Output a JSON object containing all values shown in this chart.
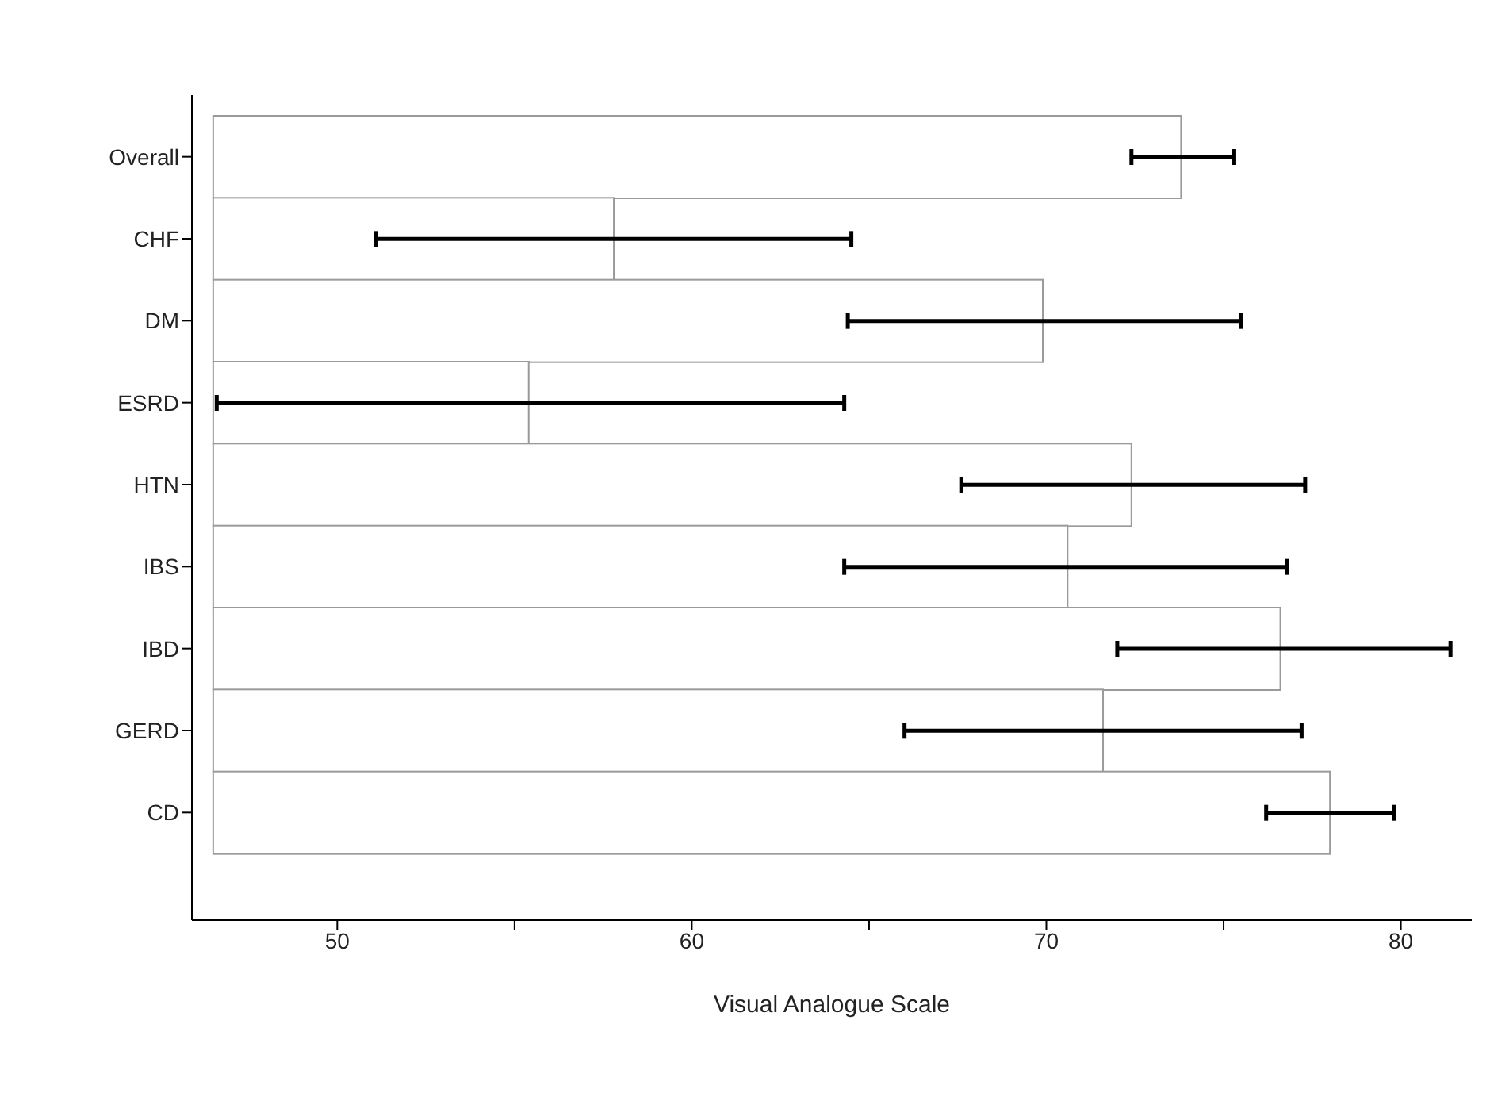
{
  "chart_data": {
    "type": "bar",
    "orientation": "horizontal",
    "xlabel": "Visual Analogue Scale",
    "categories": [
      "Overall",
      "CHF",
      "DM",
      "ESRD",
      "HTN",
      "IBS",
      "IBD",
      "GERD",
      "CD"
    ],
    "base": [
      46.5,
      46.5,
      46.5,
      46.5,
      46.5,
      46.5,
      46.5,
      46.5,
      46.5
    ],
    "values": [
      27.3,
      11.3,
      23.4,
      8.9,
      25.9,
      24.1,
      30.1,
      25.1,
      31.5
    ],
    "errors": [
      [
        72.4,
        75.3
      ],
      [
        51.1,
        64.5
      ],
      [
        64.4,
        75.5
      ],
      [
        46.6,
        64.3
      ],
      [
        67.6,
        77.3
      ],
      [
        64.3,
        76.8
      ],
      [
        72.0,
        81.4
      ],
      [
        66.0,
        77.2
      ],
      [
        76.2,
        79.8
      ]
    ],
    "color": "#ffffff",
    "xlim": [
      45.9,
      82
    ],
    "xticks": [
      50,
      {
        "value": 55,
        "label": null
      },
      60,
      {
        "value": 65,
        "label": null
      },
      70,
      {
        "value": 75,
        "label": null
      },
      80
    ],
    "grid": false
  }
}
